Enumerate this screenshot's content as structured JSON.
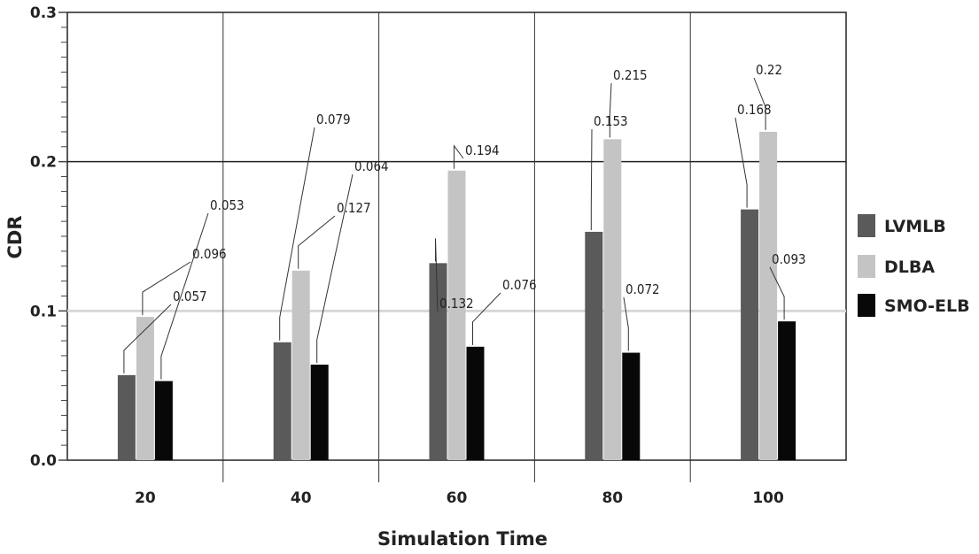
{
  "chart_data": {
    "type": "bar",
    "xlabel": "Simulation Time",
    "ylabel": "CDR",
    "ylim": [
      0,
      0.3
    ],
    "yticks": [
      {
        "value": 0.0,
        "label": "0.0"
      },
      {
        "value": 0.1,
        "label": "0.1"
      },
      {
        "value": 0.2,
        "label": "0.2"
      },
      {
        "value": 0.3,
        "label": "0.3"
      }
    ],
    "categories": [
      "20",
      "40",
      "60",
      "80",
      "100"
    ],
    "series": [
      {
        "name": "LVMLB",
        "color": "#5a5a5a",
        "values": [
          0.057,
          0.079,
          0.132,
          0.153,
          0.168
        ]
      },
      {
        "name": "DLBA",
        "color": "#c4c4c4",
        "values": [
          0.096,
          0.127,
          0.194,
          0.215,
          0.22
        ]
      },
      {
        "name": "SMO-ELB",
        "color": "#080808",
        "values": [
          0.053,
          0.064,
          0.076,
          0.072,
          0.093
        ]
      }
    ],
    "data_labels": [
      [
        "0.057",
        "0.096",
        "0.053"
      ],
      [
        "0.079",
        "0.127",
        "0.064"
      ],
      [
        "0.132",
        "0.194",
        "0.076"
      ],
      [
        "0.153",
        "0.215",
        "0.072"
      ],
      [
        "0.168",
        "0.22",
        "0.093"
      ]
    ],
    "legend_position": "right"
  }
}
